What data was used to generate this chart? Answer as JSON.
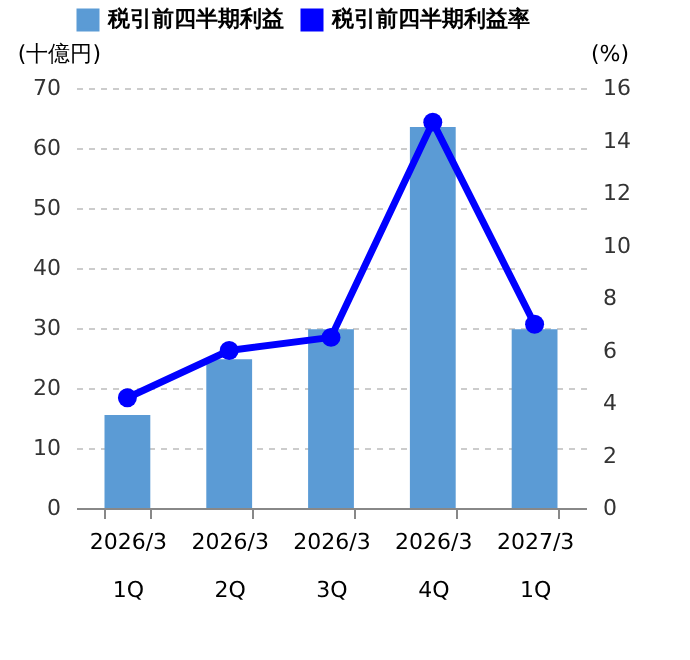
{
  "chart_data": {
    "type": "bar",
    "categories": [
      "2026/3\n1Q",
      "2026/3\n2Q",
      "2026/3\n3Q",
      "2026/3\n4Q",
      "2027/3\n1Q"
    ],
    "series": [
      {
        "name": "税引前四半期利益",
        "color": "#5b9bd5",
        "values": [
          15.5,
          24.8,
          29.8,
          63.5,
          29.8
        ]
      },
      {
        "name": "税引前四半期利益率",
        "type": "line",
        "axis": "y2",
        "color": "#0000ff",
        "values": [
          4.2,
          6.0,
          6.5,
          14.7,
          7.0
        ]
      }
    ],
    "ylabel": "(十億円)",
    "y2label": "(%)",
    "ylim": [
      0,
      70
    ],
    "yticks": [
      0,
      10,
      20,
      30,
      40,
      50,
      60,
      70
    ],
    "y2lim": [
      0,
      16
    ],
    "y2ticks": [
      0,
      2,
      4,
      6,
      8,
      10,
      12,
      14,
      16
    ],
    "grid": "y",
    "legend": "top",
    "marker": "circle",
    "line_style": "solid"
  }
}
